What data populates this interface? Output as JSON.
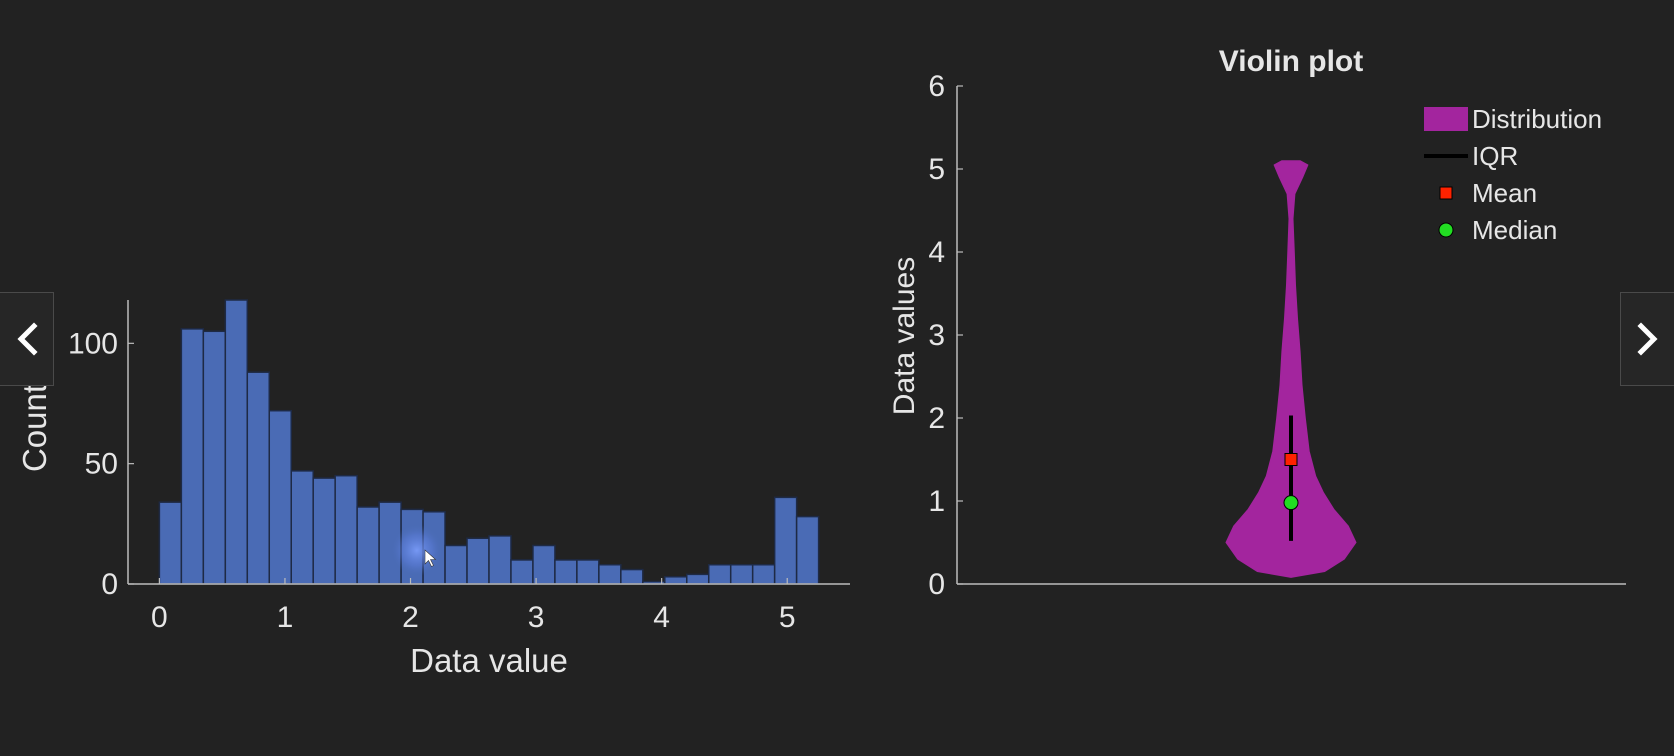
{
  "colors": {
    "background": "#222222",
    "axis": "#bdbdbd",
    "text": "#e6e6e6",
    "bar": "#4a6bb5",
    "bar_edge": "#1e2a45",
    "violin": "#a3259e",
    "iqr": "#000000",
    "mean": "#ff2200",
    "median": "#22dd22",
    "cursor_glow": "#6f8fe8"
  },
  "navigation": {
    "prev_icon": "chevron-left-icon",
    "next_icon": "chevron-right-icon"
  },
  "chart_data": [
    {
      "type": "bar",
      "subtype": "histogram",
      "title": "",
      "xlabel": "Data value",
      "ylabel": "Count",
      "xlim": [
        -0.25,
        5.5
      ],
      "ylim": [
        0,
        118
      ],
      "bin_width": 0.175,
      "bin_start": 0,
      "x_ticks": [
        "0",
        "1",
        "2",
        "3",
        "4",
        "5"
      ],
      "y_ticks": [
        "0",
        "50",
        "100"
      ],
      "values": [
        34,
        106,
        105,
        118,
        88,
        72,
        47,
        44,
        45,
        32,
        34,
        31,
        30,
        16,
        19,
        20,
        10,
        16,
        10,
        10,
        8,
        6,
        1,
        3,
        4,
        8,
        8,
        8,
        36,
        28
      ],
      "grid": false
    },
    {
      "type": "violin",
      "title": "Violin plot",
      "xlabel": "",
      "ylabel": "Data values",
      "ylim": [
        0,
        6
      ],
      "y_ticks": [
        "0",
        "1",
        "2",
        "3",
        "4",
        "5",
        "6"
      ],
      "density_profile": [
        {
          "y": 0.08,
          "w": 0.0
        },
        {
          "y": 0.15,
          "w": 0.26
        },
        {
          "y": 0.3,
          "w": 0.41
        },
        {
          "y": 0.5,
          "w": 0.5
        },
        {
          "y": 0.7,
          "w": 0.44
        },
        {
          "y": 0.9,
          "w": 0.33
        },
        {
          "y": 1.1,
          "w": 0.25
        },
        {
          "y": 1.3,
          "w": 0.19
        },
        {
          "y": 1.6,
          "w": 0.14
        },
        {
          "y": 2.0,
          "w": 0.11
        },
        {
          "y": 2.4,
          "w": 0.085
        },
        {
          "y": 2.8,
          "w": 0.07
        },
        {
          "y": 3.2,
          "w": 0.05
        },
        {
          "y": 3.6,
          "w": 0.035
        },
        {
          "y": 4.0,
          "w": 0.025
        },
        {
          "y": 4.4,
          "w": 0.015
        },
        {
          "y": 4.7,
          "w": 0.03
        },
        {
          "y": 4.9,
          "w": 0.09
        },
        {
          "y": 5.05,
          "w": 0.13
        },
        {
          "y": 5.1,
          "w": 0.07
        }
      ],
      "iqr": [
        0.52,
        2.03
      ],
      "mean": 1.5,
      "median": 0.98,
      "legend": {
        "placement": "top-right",
        "entries": [
          {
            "label": "Distribution",
            "marker": "patch"
          },
          {
            "label": "IQR",
            "marker": "line"
          },
          {
            "label": "Mean",
            "marker": "square"
          },
          {
            "label": "Median",
            "marker": "circle"
          }
        ]
      },
      "grid": false
    }
  ]
}
